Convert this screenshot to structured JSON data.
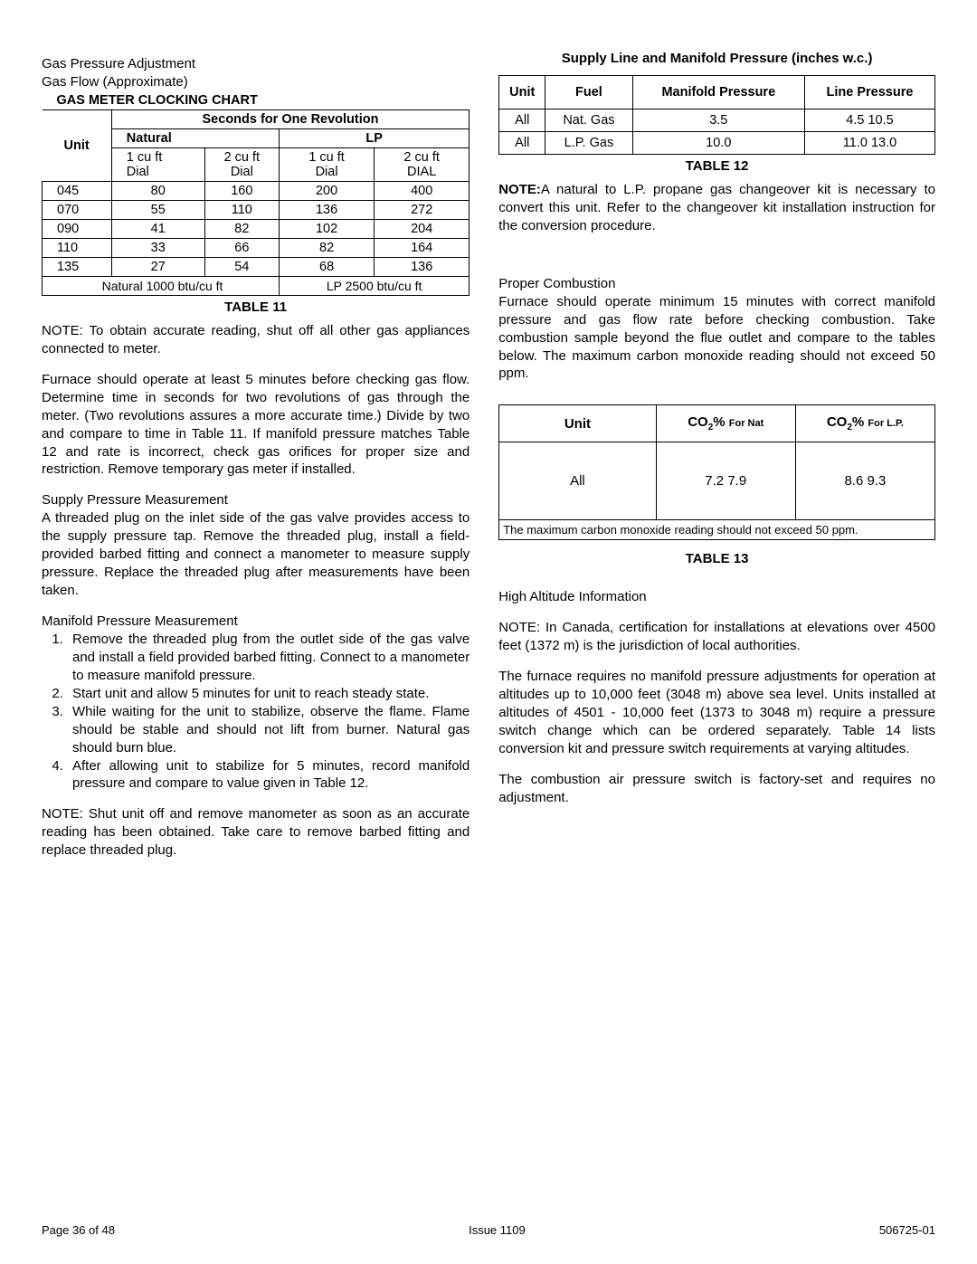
{
  "left": {
    "hdr1": "Gas Pressure Adjustment",
    "hdr2": "Gas Flow (Approximate)",
    "t11": {
      "title": "GAS METER CLOCKING CHART",
      "secTitle": "Seconds for One Revolution",
      "nat": "Natural",
      "lp": "LP",
      "unit": "Unit",
      "c1a": "1 cu ft",
      "c1b": "Dial",
      "c2a": "2 cu ft",
      "c2b": "Dial",
      "c3a": "1 cu ft",
      "c3b": "Dial",
      "c4a": "2 cu ft",
      "c4b": "DIAL",
      "rows": [
        [
          "045",
          "80",
          "160",
          "200",
          "400"
        ],
        [
          "070",
          "55",
          "110",
          "136",
          "272"
        ],
        [
          "090",
          "41",
          "82",
          "102",
          "204"
        ],
        [
          "110",
          "33",
          "66",
          "82",
          "164"
        ],
        [
          "135",
          "27",
          "54",
          "68",
          "136"
        ]
      ],
      "footNat": "Natural 1000 btu/cu ft",
      "footLP": "LP 2500 btu/cu ft",
      "caption": "TABLE 11"
    },
    "note1": "NOTE:  To obtain accurate reading, shut off all other gas appliances connected to meter.",
    "para1": "Furnace should operate at least 5 minutes before checking gas flow.  Determine time in seconds for two  revolutions of gas through the meter.  (Two revolutions assures a more accurate time.)   Divide by two  and compare to time in Table 11.   If manifold pressure matches Table 12 and rate is incorrect, check gas orifices for proper size and restriction.  Remove temporary gas meter if installed.",
    "spHdr": "Supply Pressure Measurement",
    "spPara": "A threaded plug on the inlet side of the gas valve provides access to the supply pressure tap.  Remove the threaded plug, install a field-provided barbed fitting and connect a manometer to measure supply pressure.  Replace the threaded plug after measurements have been taken.",
    "mpHdr": "Manifold Pressure Measurement",
    "mpList": [
      "Remove the threaded plug from the outlet side of the gas valve and install a field provided barbed fitting.  Connect to a manometer to measure manifold pressure.",
      "Start unit and allow 5 minutes for unit to reach steady state.",
      "While waiting for the unit to stabilize, observe the flame.  Flame should be stable and should not lift from burner.  Natural gas should burn blue.",
      "After allowing unit to stabilize for 5 minutes, record manifold pressure and  compare to  value given  in Table 12."
    ],
    "note2": "NOTE:  Shut unit off and remove manometer as soon as an accurate reading has been obtained. Take care to remove barbed fitting and replace threaded plug."
  },
  "right": {
    "t12": {
      "title": "Supply Line and Manifold Pressure (inches w.c.)",
      "hdrs": [
        "Unit",
        "Fuel",
        "Manifold Pressure",
        "Line Pressure"
      ],
      "rows": [
        [
          "All",
          "Nat. Gas",
          "3.5",
          "4.5   10.5"
        ],
        [
          "All",
          "L.P. Gas",
          "10.0",
          "11.0   13.0"
        ]
      ],
      "caption": "TABLE 12"
    },
    "noteLabel": "NOTE:",
    "notePara": "A natural to L.P. propane gas changeover kit is necessary to convert this unit. Refer to the changeover kit installation instruction for the conversion procedure.",
    "pcHdr": "Proper Combustion",
    "pcPara": "Furnace should operate minimum 15 minutes with correct manifold pressure and gas flow rate before checking combustion.  Take combustion sample beyond the flue outlet and compare to the tables below.  The maximum carbon monoxide reading should not exceed 50 ppm.",
    "t13": {
      "hUnit": "Unit",
      "hNatA": "CO",
      "hNatB": "% ",
      "hNatC": "For Nat",
      "hLPA": "CO",
      "hLPB": "% ",
      "hLPC": "For L.P.",
      "rowUnit": "All",
      "rowNat": "7.2   7.9",
      "rowLP": "8.6   9.3",
      "foot": "The maximum carbon monoxide reading should not exceed 50 ppm.",
      "caption": "TABLE 13"
    },
    "haHdr": "High Altitude Information",
    "haNote": "NOTE:  In Canada, certification for installations at elevations over 4500 feet (1372 m) is the jurisdiction of local authorities.",
    "haPara1": "The furnace requires no manifold pressure adjustments for operation at altitudes up to 10,000 feet (3048 m) above sea level.  Units installed at altitudes of 4501 - 10,000 feet (1373 to 3048 m) require a pressure switch change which can be ordered separately.  Table 14 lists conversion kit and pressure switch requirements at varying altitudes.",
    "haPara2": "The combustion air pressure switch is factory-set and requires no adjustment."
  },
  "footer": {
    "left": "Page 36 of 48",
    "center": "Issue 1109",
    "right": "506725-01"
  }
}
